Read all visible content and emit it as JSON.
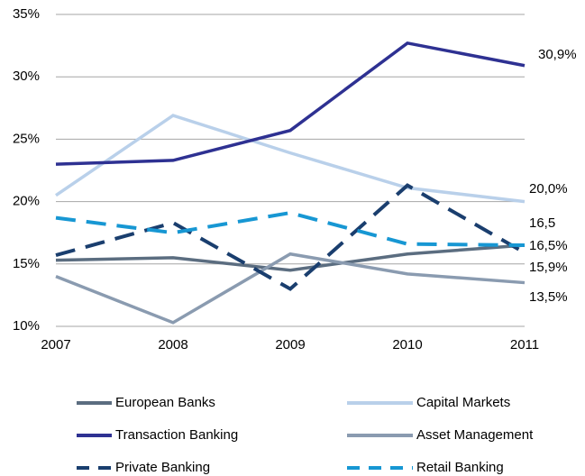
{
  "chart_data": {
    "type": "line",
    "categories": [
      "2007",
      "2008",
      "2009",
      "2010",
      "2011"
    ],
    "ylim": [
      10,
      35
    ],
    "yticks": [
      {
        "value": 10,
        "label": "10%"
      },
      {
        "value": 15,
        "label": "15%"
      },
      {
        "value": 20,
        "label": "20%"
      },
      {
        "value": 25,
        "label": "25%"
      },
      {
        "value": 30,
        "label": "30%"
      },
      {
        "value": 35,
        "label": "35%"
      }
    ],
    "grid": true,
    "series": [
      {
        "name": "European Banks",
        "color": "#5b6d80",
        "dashed": false,
        "values": [
          15.3,
          15.5,
          14.5,
          15.8,
          16.5
        ],
        "value_labels": [
          null,
          null,
          null,
          null,
          "16,5"
        ]
      },
      {
        "name": "Capital Markets",
        "color": "#b9d0ea",
        "dashed": false,
        "values": [
          20.5,
          26.9,
          23.9,
          21.1,
          20.0
        ],
        "value_labels": [
          null,
          null,
          null,
          null,
          "20,0%"
        ]
      },
      {
        "name": "Transaction Banking",
        "color": "#2e3192",
        "dashed": false,
        "values": [
          23.0,
          23.3,
          25.7,
          32.7,
          30.9
        ],
        "value_labels": [
          null,
          null,
          null,
          null,
          "30,9%"
        ]
      },
      {
        "name": "Asset Management",
        "color": "#8a9bb0",
        "dashed": false,
        "values": [
          14.0,
          10.3,
          15.8,
          14.2,
          13.5
        ],
        "value_labels": [
          null,
          null,
          null,
          null,
          "13,5%"
        ]
      },
      {
        "name": "Private Banking",
        "color": "#1a3e6e",
        "dashed": true,
        "values": [
          15.7,
          18.3,
          13.0,
          21.3,
          15.9
        ],
        "value_labels": [
          null,
          null,
          null,
          null,
          "15,9%"
        ]
      },
      {
        "name": "Retail Banking",
        "color": "#1797d3",
        "dashed": true,
        "values": [
          18.7,
          17.5,
          19.1,
          16.6,
          16.5
        ],
        "value_labels": [
          null,
          null,
          null,
          null,
          "16,5%"
        ]
      }
    ]
  }
}
